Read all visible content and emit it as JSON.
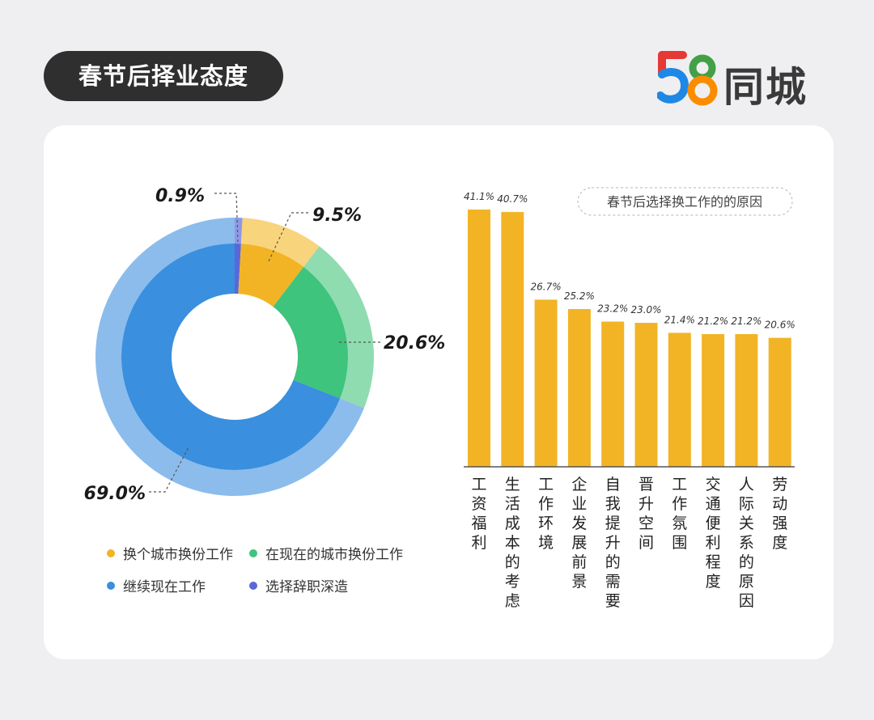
{
  "header": {
    "title": "春节后择业态度",
    "logo_number": "58",
    "logo_text": "同城"
  },
  "colors": {
    "orange": "#f2b425",
    "orange_light": "#f8d47c",
    "green": "#3ec47c",
    "green_light": "#8fdcb0",
    "blue": "#3a8fde",
    "blue_light": "#8bbcec",
    "purple": "#5a67d8",
    "bar": "#f2b425"
  },
  "chart_data": [
    {
      "type": "pie",
      "title": "",
      "slices": [
        {
          "name": "选择辞职深造",
          "value": 0.9,
          "label": "0.9%",
          "color": "#5a67d8"
        },
        {
          "name": "换个城市换份工作",
          "value": 9.5,
          "label": "9.5%",
          "color": "#f2b425"
        },
        {
          "name": "在现在的城市换份工作",
          "value": 20.6,
          "label": "20.6%",
          "color": "#3ec47c"
        },
        {
          "name": "继续现在工作",
          "value": 69.0,
          "label": "69.0%",
          "color": "#3a8fde"
        }
      ],
      "legend": [
        {
          "name": "换个城市换份工作",
          "color": "#f2b425"
        },
        {
          "name": "在现在的城市换份工作",
          "color": "#3ec47c"
        },
        {
          "name": "继续现在工作",
          "color": "#3a8fde"
        },
        {
          "name": "选择辞职深造",
          "color": "#5a67d8"
        }
      ],
      "legend_position": "bottom"
    },
    {
      "type": "bar",
      "title": "春节后选择换工作的的原因",
      "categories": [
        "工资福利",
        "生活成本的考虑",
        "工作环境",
        "企业发展前景",
        "自我提升的需要",
        "晋升空间",
        "工作氛围",
        "交通便利程度",
        "人际关系的原因",
        "劳动强度"
      ],
      "values": [
        41.1,
        40.7,
        26.7,
        25.2,
        23.2,
        23.0,
        21.4,
        21.2,
        21.2,
        20.6
      ],
      "labels": [
        "41.1%",
        "40.7%",
        "26.7%",
        "25.2%",
        "23.2%",
        "23.0%",
        "21.4%",
        "21.2%",
        "21.2%",
        "20.6%"
      ],
      "ylim": [
        0,
        41.1
      ],
      "grid": false
    }
  ]
}
